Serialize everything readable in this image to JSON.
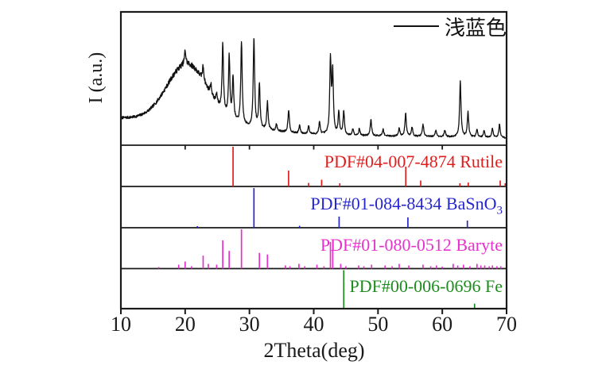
{
  "chart_data": {
    "type": "line",
    "subtype": "xrd-pattern-with-reference-stick-panels",
    "title": "",
    "xlabel": "2Theta(deg)",
    "ylabel": "I (a.u.)",
    "xlim": [
      10,
      70
    ],
    "x_ticks": [
      10,
      20,
      30,
      40,
      50,
      60,
      70
    ],
    "divider_ticks": [
      20,
      30,
      40,
      50,
      60
    ],
    "grid": false,
    "legend_position": "top-right-inside",
    "legend": [
      {
        "label": "浅蓝色",
        "color": "#111111"
      }
    ],
    "sample_pattern": {
      "name": "浅蓝色",
      "color": "#111111",
      "baseline_points": [
        [
          10,
          0.205
        ],
        [
          20,
          0.185
        ],
        [
          26,
          0.165
        ],
        [
          32,
          0.115
        ],
        [
          38,
          0.085
        ],
        [
          45,
          0.072
        ],
        [
          55,
          0.066
        ],
        [
          70,
          0.055
        ]
      ],
      "amorphous_hump": {
        "center": 20.3,
        "sigma": 3.1,
        "height": 0.425
      },
      "peak_hwhm_deg": 0.13,
      "noise": {
        "seed": 7,
        "base": 0.004,
        "proportional": 0.028
      },
      "peaks": [
        [
          20.0,
          0.1
        ],
        [
          22.8,
          0.11
        ],
        [
          24.0,
          0.08
        ],
        [
          24.9,
          0.07
        ],
        [
          25.85,
          0.5
        ],
        [
          26.85,
          0.46
        ],
        [
          27.45,
          0.32
        ],
        [
          28.76,
          0.62
        ],
        [
          30.7,
          0.67
        ],
        [
          31.55,
          0.33
        ],
        [
          32.8,
          0.21
        ],
        [
          34.2,
          0.05
        ],
        [
          36.1,
          0.17
        ],
        [
          37.8,
          0.06
        ],
        [
          39.2,
          0.06
        ],
        [
          40.9,
          0.09
        ],
        [
          42.6,
          0.55
        ],
        [
          42.95,
          0.46
        ],
        [
          43.9,
          0.17
        ],
        [
          44.67,
          0.18
        ],
        [
          46.1,
          0.05
        ],
        [
          47.1,
          0.05
        ],
        [
          48.9,
          0.12
        ],
        [
          50.8,
          0.05
        ],
        [
          53.3,
          0.06
        ],
        [
          54.3,
          0.17
        ],
        [
          55.3,
          0.07
        ],
        [
          57.0,
          0.09
        ],
        [
          59.0,
          0.05
        ],
        [
          60.4,
          0.05
        ],
        [
          62.8,
          0.42
        ],
        [
          64.0,
          0.19
        ],
        [
          65.4,
          0.06
        ],
        [
          66.5,
          0.05
        ],
        [
          67.8,
          0.07
        ],
        [
          68.9,
          0.1
        ]
      ]
    },
    "reference_panels": [
      {
        "id": "rutile",
        "label": "PDF#04-007-4874 Rutile",
        "label_main": "PDF#04-007-4874 Rutile",
        "label_sub": "",
        "color": "#e01e1e",
        "sticks": [
          [
            27.45,
            100
          ],
          [
            36.09,
            40
          ],
          [
            39.19,
            9
          ],
          [
            41.23,
            17
          ],
          [
            44.05,
            8
          ],
          [
            54.32,
            50
          ],
          [
            56.64,
            15
          ],
          [
            62.74,
            8
          ],
          [
            64.04,
            10
          ],
          [
            69.01,
            15
          ],
          [
            69.79,
            8
          ]
        ]
      },
      {
        "id": "basno3",
        "label": "PDF#01-084-8434 BaSnO3",
        "label_main": "PDF#01-084-8434 BaSnO",
        "label_sub": "3",
        "color": "#2727cf",
        "sticks": [
          [
            21.9,
            4
          ],
          [
            30.7,
            100
          ],
          [
            37.8,
            5
          ],
          [
            43.95,
            28
          ],
          [
            54.65,
            26
          ],
          [
            63.9,
            18
          ]
        ]
      },
      {
        "id": "baryte",
        "label": "PDF#01-080-0512 Baryte",
        "label_main": "PDF#01-080-0512 Baryte",
        "label_sub": "",
        "color": "#e531cd",
        "sticks": [
          [
            15.9,
            4
          ],
          [
            19.0,
            10
          ],
          [
            20.0,
            18
          ],
          [
            21.0,
            6
          ],
          [
            22.8,
            33
          ],
          [
            23.6,
            12
          ],
          [
            24.9,
            10
          ],
          [
            25.85,
            72
          ],
          [
            26.85,
            45
          ],
          [
            28.76,
            100
          ],
          [
            31.55,
            40
          ],
          [
            32.8,
            36
          ],
          [
            35.6,
            8
          ],
          [
            36.3,
            6
          ],
          [
            37.7,
            12
          ],
          [
            38.6,
            6
          ],
          [
            40.5,
            10
          ],
          [
            41.6,
            6
          ],
          [
            42.6,
            68
          ],
          [
            42.95,
            52
          ],
          [
            44.2,
            12
          ],
          [
            45.0,
            6
          ],
          [
            47.0,
            8
          ],
          [
            47.8,
            6
          ],
          [
            49.0,
            10
          ],
          [
            51.1,
            8
          ],
          [
            52.2,
            6
          ],
          [
            53.3,
            12
          ],
          [
            54.8,
            8
          ],
          [
            57.0,
            10
          ],
          [
            58.2,
            6
          ],
          [
            59.1,
            8
          ],
          [
            60.0,
            5
          ],
          [
            61.7,
            12
          ],
          [
            62.4,
            8
          ],
          [
            63.3,
            10
          ],
          [
            64.3,
            6
          ],
          [
            65.4,
            12
          ],
          [
            66.0,
            8
          ],
          [
            66.6,
            8
          ],
          [
            67.3,
            6
          ],
          [
            67.8,
            8
          ],
          [
            68.5,
            6
          ],
          [
            69.1,
            6
          ]
        ]
      },
      {
        "id": "fe",
        "label": "PDF#00-006-0696 Fe",
        "label_main": "PDF#00-006-0696 Fe",
        "label_sub": "",
        "color": "#1e8c1e",
        "sticks": [
          [
            44.67,
            100
          ],
          [
            65.02,
            13
          ]
        ]
      }
    ]
  }
}
